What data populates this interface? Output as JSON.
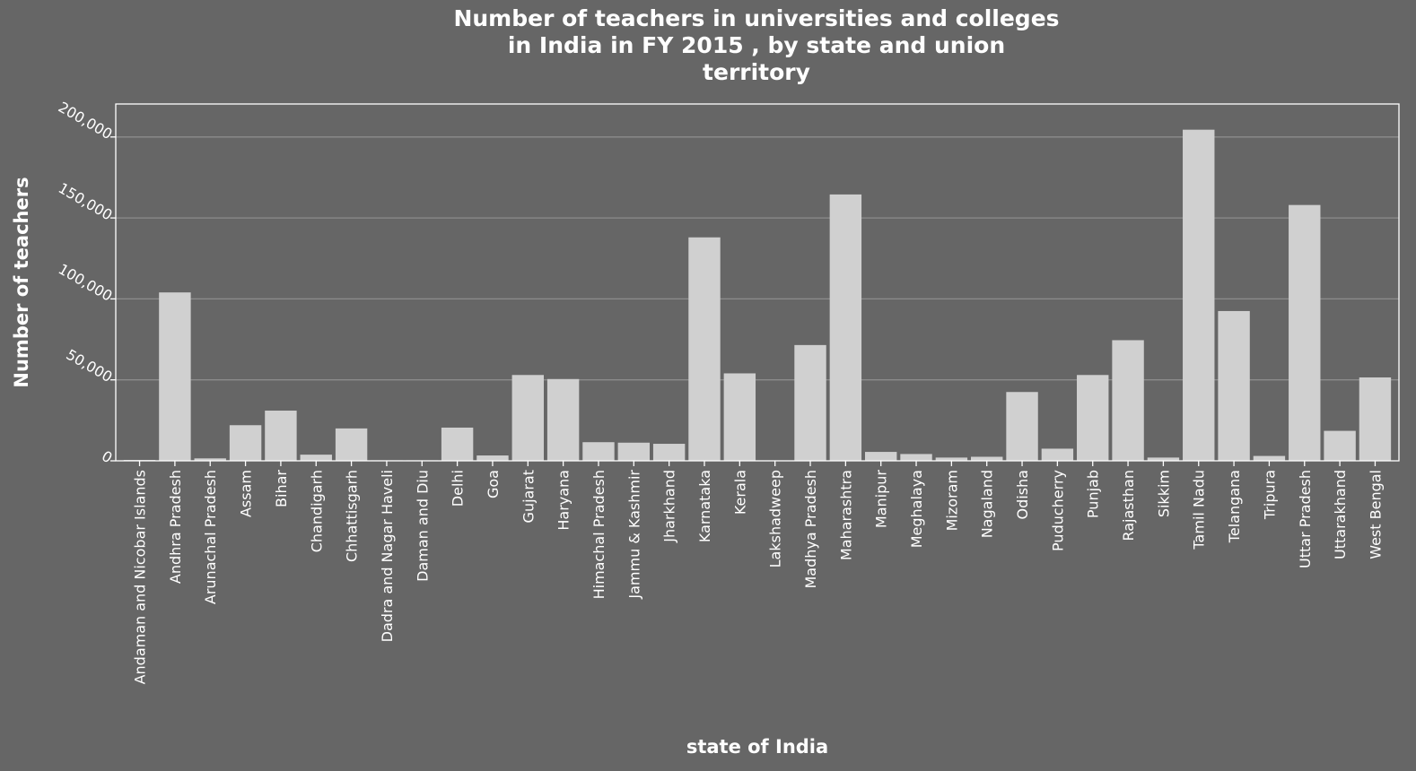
{
  "chart_data": {
    "type": "bar",
    "title": [
      "Number of teachers in universities and colleges",
      "in India in FY 2015 , by state and union",
      "territory"
    ],
    "xlabel": "state of India",
    "ylabel": "Number of teachers",
    "ylim": [
      0,
      220000
    ],
    "yticks": [
      0,
      50000,
      100000,
      150000,
      200000
    ],
    "ytick_labels": [
      "0",
      "50,000",
      "100,000",
      "150,000",
      "200,000"
    ],
    "grid": true,
    "bar_color": "#d0d0d0",
    "background": "#666666",
    "categories": [
      "Andaman and Nicobar Islands",
      "Andhra Pradesh",
      "Arunachal Pradesh",
      "Assam",
      "Bihar",
      "Chandigarh",
      "Chhattisgarh",
      "Dadra and Nagar Haveli",
      "Daman and Diu",
      "Delhi",
      "Goa",
      "Gujarat",
      "Haryana",
      "Himachal Pradesh",
      "Jammu & Kashmir",
      "Jharkhand",
      "Karnataka",
      "Kerala",
      "Lakshadweep",
      "Madhya Pradesh",
      "Maharashtra",
      "Manipur",
      "Meghalaya",
      "Mizoram",
      "Nagaland",
      "Odisha",
      "Puducherry",
      "Punjab",
      "Rajasthan",
      "Sikkim",
      "Tamil Nadu",
      "Telangana",
      "Tripura",
      "Uttar Pradesh",
      "Uttarakhand",
      "West Bengal"
    ],
    "values": [
      500,
      104000,
      1500,
      22000,
      31000,
      3800,
      20000,
      300,
      300,
      20500,
      3300,
      53000,
      50500,
      11500,
      11200,
      10500,
      138000,
      54000,
      50,
      71500,
      164500,
      5500,
      4200,
      2000,
      2500,
      42500,
      7500,
      53000,
      74500,
      2000,
      204500,
      92500,
      3000,
      158000,
      18500,
      51500
    ]
  }
}
